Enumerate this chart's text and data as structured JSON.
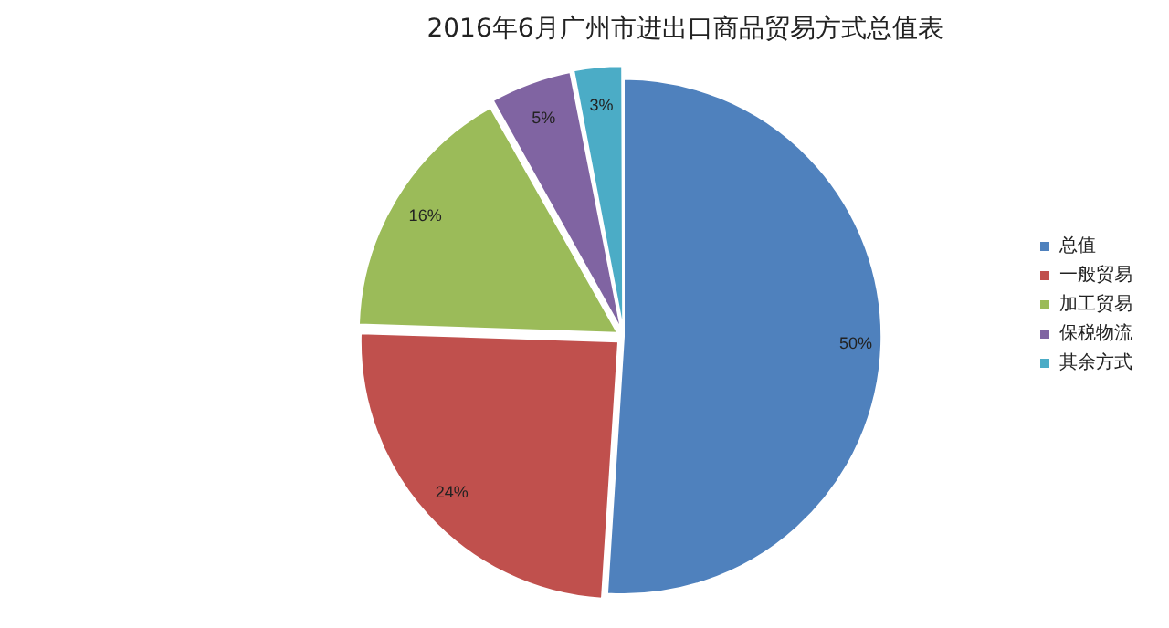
{
  "chart_data": {
    "type": "pie",
    "title": "2016年6月广州市进出口商品贸易方式总值表",
    "categories": [
      "总值",
      "一般贸易",
      "加工贸易",
      "保税物流",
      "其余方式"
    ],
    "values": [
      50,
      24,
      16,
      5,
      3
    ],
    "colors": [
      "#4f81bd",
      "#c0504d",
      "#9bbb59",
      "#8064a2",
      "#4bacc6"
    ],
    "value_labels": [
      "50%",
      "24%",
      "16%",
      "5%",
      "3%"
    ],
    "legend": "right"
  }
}
